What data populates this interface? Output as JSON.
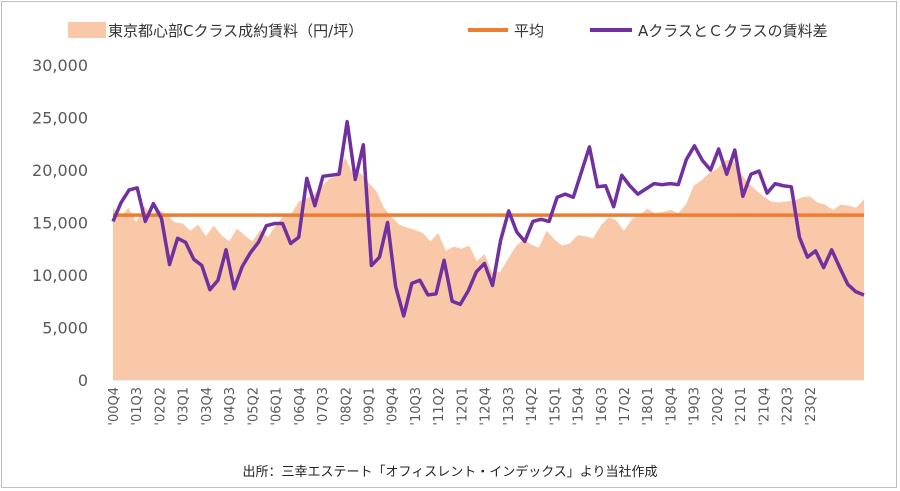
{
  "chart_data": {
    "type": "area+line",
    "legend_position": "top",
    "series": [
      {
        "name": "東京都心部Cクラス成約賃料（円/坪）",
        "kind": "area",
        "color": "#f8c8a8",
        "values": [
          16400,
          15600,
          16400,
          15000,
          16600,
          15700,
          16200,
          15700,
          15000,
          14900,
          14200,
          14800,
          13700,
          14700,
          13800,
          13200,
          14400,
          13800,
          13200,
          14300,
          13600,
          14700,
          15600,
          15800,
          17000,
          17300,
          17700,
          18500,
          19200,
          19400,
          21200,
          19600,
          19700,
          18800,
          18000,
          16400,
          15500,
          14800,
          14500,
          14300,
          14000,
          13200,
          14000,
          12300,
          12700,
          12500,
          12800,
          11300,
          12000,
          10200,
          10300,
          11500,
          12700,
          13400,
          12900,
          12600,
          14200,
          13400,
          12800,
          13000,
          13800,
          13700,
          13500,
          14700,
          15500,
          15200,
          14200,
          15300,
          15700,
          16300,
          15900,
          16000,
          16200,
          15900,
          16700,
          18500,
          19000,
          19700,
          20100,
          20900,
          21000,
          19800,
          18800,
          18100,
          17500,
          17000,
          16900,
          17000,
          17100,
          17400,
          17500,
          16900,
          16700,
          16200,
          16700,
          16600,
          16400,
          17200
        ]
      },
      {
        "name": "平均",
        "kind": "line",
        "color": "#ed7d31",
        "value": 15700
      },
      {
        "name": "AクラスとＣクラスの賃料差",
        "kind": "line",
        "color": "#7030a0",
        "values": [
          15100,
          16900,
          18100,
          18300,
          15100,
          16800,
          15400,
          11000,
          13500,
          13100,
          11500,
          10900,
          8600,
          9500,
          12400,
          8700,
          10800,
          12100,
          13100,
          14700,
          14900,
          14900,
          13000,
          13600,
          19200,
          16600,
          19400,
          19500,
          19600,
          24600,
          19100,
          22400,
          10900,
          11700,
          15000,
          8900,
          6100,
          9200,
          9500,
          8100,
          8200,
          11400,
          7500,
          7200,
          8500,
          10300,
          11100,
          9000,
          13300,
          16100,
          14100,
          13200,
          15100,
          15300,
          15100,
          17400,
          17700,
          17400,
          19800,
          22200,
          18400,
          18500,
          16500,
          19500,
          18500,
          17700,
          18200,
          18700,
          18600,
          18700,
          18600,
          21000,
          22300,
          20900,
          20000,
          22000,
          19600,
          21900,
          17500,
          19600,
          19900,
          17800,
          18700,
          18500,
          18400,
          13600,
          11700,
          12300,
          10700,
          12400,
          10700,
          9100,
          8400,
          8100
        ]
      }
    ],
    "x_tick_labels": [
      "'00Q4",
      "'01Q3",
      "'02Q2",
      "'03Q1",
      "'03Q4",
      "'04Q3",
      "'05Q2",
      "'06Q1",
      "'06Q4",
      "'07Q3",
      "'08Q2",
      "'09Q1",
      "'09Q4",
      "'10Q3",
      "'11Q2",
      "'12Q1",
      "'12Q4",
      "'13Q3",
      "'14Q2",
      "'15Q1",
      "'15Q4",
      "'16Q3",
      "'17Q2",
      "'18Q1",
      "'18Q4",
      "'19Q3",
      "'20Q2",
      "'21Q1",
      "'21Q4",
      "'22Q3",
      "'23Q2"
    ],
    "y_tick_labels": [
      "30,000",
      "25,000",
      "20,000",
      "15,000",
      "10,000",
      "5,000",
      "0"
    ],
    "ylim": [
      0,
      30000
    ],
    "grid": false,
    "source": "出所：三幸エステート「オフィスレント・インデックス」より当社作成"
  }
}
